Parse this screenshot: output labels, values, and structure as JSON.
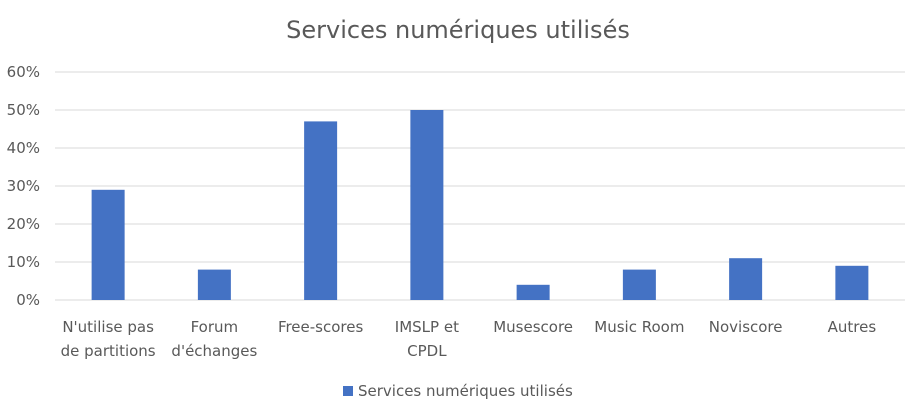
{
  "chart_data": {
    "type": "bar",
    "title": "Services numériques utilisés",
    "xlabel": "",
    "ylabel": "",
    "ylim": [
      0,
      0.6
    ],
    "yticks": [
      0,
      0.1,
      0.2,
      0.3,
      0.4,
      0.5,
      0.6
    ],
    "ytick_labels": [
      "0%",
      "10%",
      "20%",
      "30%",
      "40%",
      "50%",
      "60%"
    ],
    "categories": [
      [
        "N'utilise pas",
        "de partitions"
      ],
      [
        "Forum",
        "d'échanges"
      ],
      [
        "Free-scores"
      ],
      [
        "IMSLP et",
        "CPDL"
      ],
      [
        "Musescore"
      ],
      [
        "Music Room"
      ],
      [
        "Noviscore"
      ],
      [
        "Autres"
      ]
    ],
    "series": [
      {
        "name": "Services numériques utilisés",
        "color": "#4472c4",
        "values": [
          0.29,
          0.08,
          0.47,
          0.5,
          0.04,
          0.08,
          0.11,
          0.09
        ]
      }
    ],
    "grid": true,
    "legend_position": "bottom"
  }
}
